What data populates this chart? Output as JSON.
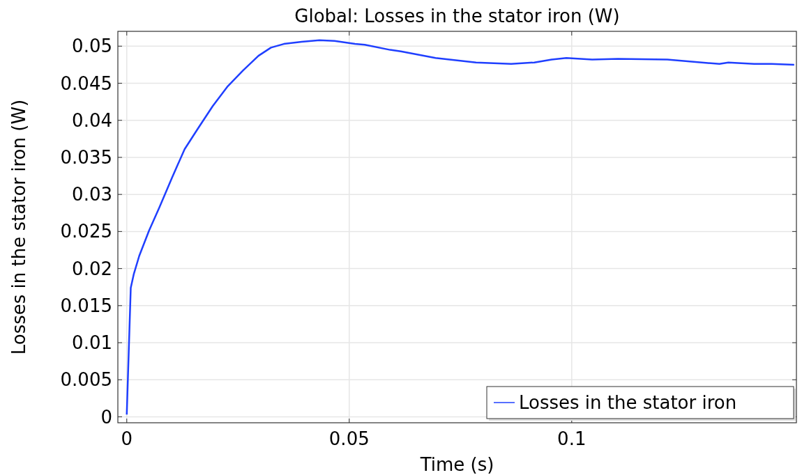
{
  "chart_data": {
    "type": "line",
    "title": "Global: Losses in the stator iron (W)",
    "xlabel": "Time (s)",
    "ylabel": "Losses in the stator iron (W)",
    "xlim": [
      -0.002,
      0.1505
    ],
    "ylim": [
      -0.0008,
      0.052
    ],
    "xticks": [
      0,
      0.05,
      0.1
    ],
    "yticks": [
      0,
      0.005,
      0.01,
      0.015,
      0.02,
      0.025,
      0.03,
      0.035,
      0.04,
      0.045,
      0.05
    ],
    "grid": true,
    "legend": "bottom right",
    "marker": "none",
    "line_style": "solid",
    "series": [
      {
        "name": "Losses in the stator iron",
        "color": "#1f3fff",
        "x": [
          0,
          0.0009,
          0.0016,
          0.0028,
          0.005,
          0.0073,
          0.0102,
          0.013,
          0.0159,
          0.0193,
          0.0227,
          0.0261,
          0.0296,
          0.0324,
          0.0353,
          0.0393,
          0.0433,
          0.0467,
          0.0513,
          0.0535,
          0.0592,
          0.0616,
          0.0694,
          0.0785,
          0.0864,
          0.0916,
          0.0955,
          0.0988,
          0.1046,
          0.1104,
          0.1215,
          0.1332,
          0.1352,
          0.141,
          0.1449,
          0.15
        ],
        "values": [
          0.0003,
          0.0174,
          0.0193,
          0.0217,
          0.0251,
          0.0282,
          0.0323,
          0.0361,
          0.0388,
          0.0419,
          0.0446,
          0.0467,
          0.0487,
          0.0498,
          0.0503,
          0.0506,
          0.0508,
          0.0507,
          0.0503,
          0.0502,
          0.0495,
          0.0493,
          0.0484,
          0.0478,
          0.0476,
          0.0478,
          0.0482,
          0.0484,
          0.0482,
          0.0483,
          0.0482,
          0.0476,
          0.0478,
          0.0476,
          0.0476,
          0.0475
        ]
      }
    ]
  }
}
